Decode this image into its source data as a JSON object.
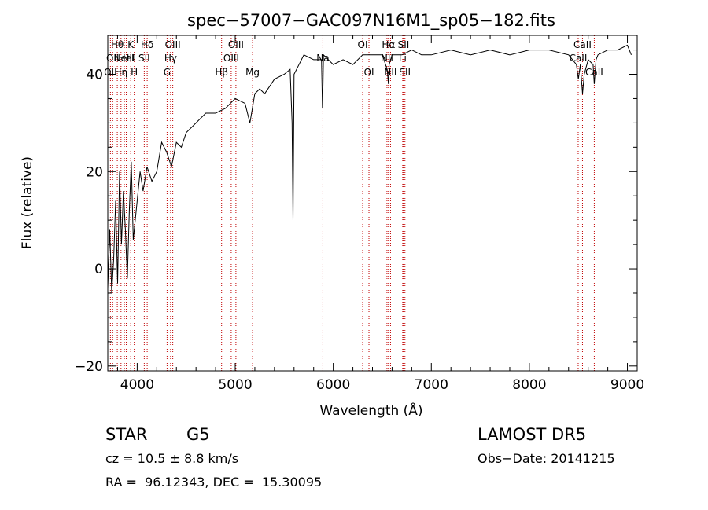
{
  "chart_data": {
    "type": "line",
    "title": "spec−57007−GAC097N16M1_sp05−182.fits",
    "xlabel": "Wavelength (Å)",
    "ylabel": "Flux (relative)",
    "xlim": [
      3700,
      9100
    ],
    "ylim": [
      -21,
      48
    ],
    "x_ticks": [
      4000,
      5000,
      6000,
      7000,
      8000,
      9000
    ],
    "y_ticks": [
      -20,
      0,
      20,
      40
    ],
    "y_tick_labels": [
      "−20",
      "0",
      "20",
      "40"
    ],
    "grid": false,
    "legend": "none",
    "series": [
      {
        "x": [
          3700,
          3720,
          3740,
          3760,
          3780,
          3800,
          3820,
          3840,
          3860,
          3880,
          3900,
          3920,
          3940,
          3960,
          3980,
          4000,
          4030,
          4060,
          4100,
          4150,
          4200,
          4250,
          4300,
          4350,
          4400,
          4450,
          4500,
          4600,
          4700,
          4800,
          4900,
          5000,
          5100,
          5150,
          5200,
          5250,
          5300,
          5400,
          5500,
          5560,
          5580,
          5590,
          5600,
          5700,
          5800,
          5880,
          5890,
          5895,
          5900,
          6000,
          6100,
          6200,
          6300,
          6400,
          6500,
          6550,
          6563,
          6570,
          6600,
          6700,
          6800,
          6900,
          7000,
          7200,
          7400,
          7600,
          7800,
          8000,
          8200,
          8400,
          8480,
          8500,
          8520,
          8542,
          8560,
          8600,
          8650,
          8662,
          8680,
          8700,
          8800,
          8900,
          9000,
          9040
        ],
        "y": [
          -4,
          8,
          -5,
          2,
          14,
          -3,
          20,
          5,
          16,
          8,
          -2,
          12,
          22,
          6,
          10,
          14,
          20,
          16,
          21,
          18,
          20,
          26,
          24,
          21,
          26,
          25,
          28,
          30,
          32,
          32,
          33,
          35,
          34,
          30,
          36,
          37,
          36,
          39,
          40,
          41,
          30,
          10,
          40,
          44,
          43,
          43,
          33,
          38,
          44,
          42,
          43,
          42,
          44,
          44,
          44,
          41,
          38,
          42,
          44,
          44,
          45,
          44,
          44,
          45,
          44,
          45,
          44,
          45,
          45,
          44,
          42,
          39,
          42,
          36,
          40,
          43,
          42,
          38,
          43,
          44,
          45,
          45,
          46,
          44
        ]
      }
    ],
    "lines": [
      {
        "x": 3727,
        "label": "OII",
        "row": 3
      },
      {
        "x": 3750,
        "label": "OII",
        "row": 2
      },
      {
        "x": 3797,
        "label": "Hθ",
        "row": 1
      },
      {
        "x": 3835,
        "label": "Hη",
        "row": 3
      },
      {
        "x": 3869,
        "label": "NeIII",
        "row": 2
      },
      {
        "x": 3889,
        "label": "HeI",
        "row": 2
      },
      {
        "x": 3934,
        "label": "K",
        "row": 1
      },
      {
        "x": 3970,
        "label": "H",
        "row": 3
      },
      {
        "x": 4072,
        "label": "SII",
        "row": 2
      },
      {
        "x": 4102,
        "label": "Hδ",
        "row": 1
      },
      {
        "x": 4305,
        "label": "G",
        "row": 3
      },
      {
        "x": 4341,
        "label": "Hγ",
        "row": 2
      },
      {
        "x": 4363,
        "label": "OIII",
        "row": 1
      },
      {
        "x": 4861,
        "label": "Hβ",
        "row": 3
      },
      {
        "x": 4959,
        "label": "OIII",
        "row": 2
      },
      {
        "x": 5007,
        "label": "OIII",
        "row": 1
      },
      {
        "x": 5177,
        "label": "Mg",
        "row": 3
      },
      {
        "x": 5894,
        "label": "Na",
        "row": 2
      },
      {
        "x": 6300,
        "label": "OI",
        "row": 1
      },
      {
        "x": 6364,
        "label": "OI",
        "row": 3
      },
      {
        "x": 6548,
        "label": "NII",
        "row": 2
      },
      {
        "x": 6563,
        "label": "Hα",
        "row": 1
      },
      {
        "x": 6584,
        "label": "NII",
        "row": 3
      },
      {
        "x": 6708,
        "label": "Li",
        "row": 2
      },
      {
        "x": 6717,
        "label": "SII",
        "row": 1
      },
      {
        "x": 6731,
        "label": "SII",
        "row": 3
      },
      {
        "x": 8498,
        "label": "CaII",
        "row": 2
      },
      {
        "x": 8542,
        "label": "CaII",
        "row": 1
      },
      {
        "x": 8662,
        "label": "CaII",
        "row": 3
      }
    ]
  },
  "info": {
    "class": "STAR",
    "subclass": "G5",
    "survey": "LAMOST DR5",
    "cz": "cz = 10.5 ± 8.8 km/s",
    "obs_date": "Obs−Date: 20141215",
    "coords": "RA =  96.12343, DEC =  15.30095"
  },
  "colors": {
    "spectrum": "#000000",
    "line_markers": "#c00000",
    "axes": "#000000"
  }
}
